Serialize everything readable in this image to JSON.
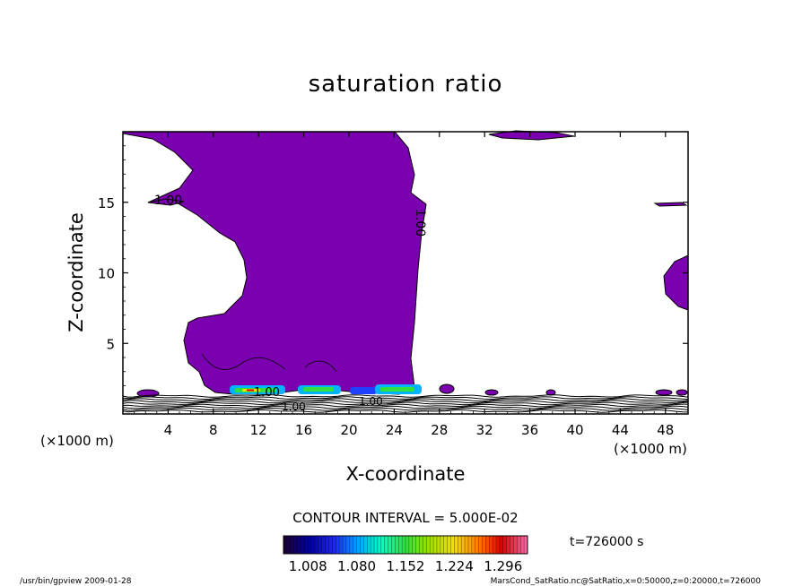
{
  "chart_data": {
    "type": "heatmap",
    "title": "saturation ratio",
    "xlabel": "X-coordinate",
    "ylabel": "Z-coordinate",
    "x_unit": "(×1000 m)",
    "x_ticks": [
      4,
      8,
      12,
      16,
      20,
      24,
      28,
      32,
      36,
      40,
      44,
      48
    ],
    "y_ticks": [
      5,
      10,
      15
    ],
    "xlim": [
      0,
      50
    ],
    "ylim": [
      0,
      20
    ],
    "contour_interval_label": "CONTOUR INTERVAL = 5.000E-02",
    "contour_labels": [
      "1.00",
      "1.00",
      "1.00",
      "1.00",
      "1.00"
    ],
    "colorbar": {
      "ticks": [
        "1.008",
        "1.080",
        "1.152",
        "1.224",
        "1.296"
      ],
      "min": 0.972,
      "max": 1.332,
      "colors": [
        "#1a0033",
        "#0000a0",
        "#2020ff",
        "#00a0ff",
        "#00ffc0",
        "#30e040",
        "#a0e000",
        "#f0e000",
        "#ff8000",
        "#e00000",
        "#ff60a0"
      ]
    },
    "time_label": "t=726000 s",
    "fill_color": "#7b00b0"
  },
  "footer": {
    "left": "/usr/bin/gpview   2009-01-28",
    "right": "MarsCond_SatRatio.nc@SatRatio,x=0:50000,z=0:20000,t=726000"
  }
}
